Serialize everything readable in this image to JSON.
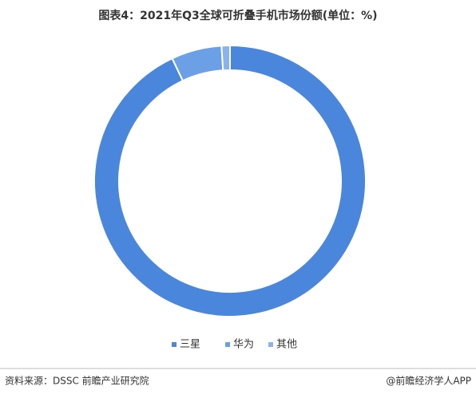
{
  "chart_data": {
    "type": "donut",
    "title": "图表4：2021年Q3全球可折叠手机市场份额(单位：%)",
    "categories": [
      "三星",
      "华为",
      "其他"
    ],
    "values": [
      93,
      6,
      1
    ],
    "colors": [
      "#4a86dc",
      "#6b9fe6",
      "#8ab3ec"
    ],
    "source": "资料来源：DSSC 前瞻产业研究院",
    "credit": "@前瞻经济学人APP"
  }
}
